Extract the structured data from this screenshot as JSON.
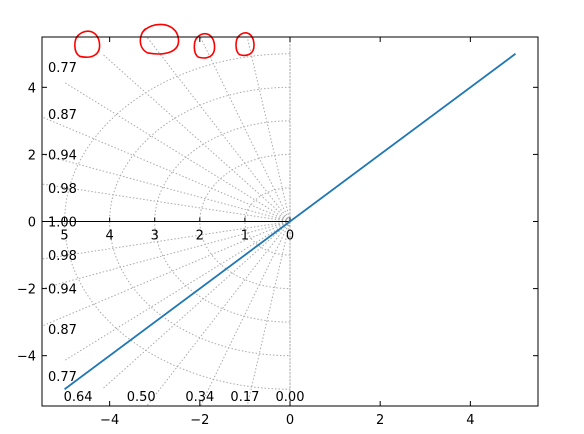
{
  "chart_data": {
    "type": "line",
    "title": "",
    "xlabel": "",
    "ylabel": "",
    "xlim": [
      -5.5,
      5.5
    ],
    "ylim": [
      -5.5,
      5.5
    ],
    "x_ticks": [
      -4,
      -2,
      0,
      2,
      4
    ],
    "y_ticks": [
      -4,
      -2,
      0,
      2,
      4
    ],
    "x_tick_labels": [
      "−4",
      "−2",
      "0",
      "2",
      "4"
    ],
    "y_tick_labels": [
      "−4",
      "−2",
      "0",
      "2",
      "4"
    ],
    "grid": false,
    "series": [
      {
        "color": "#1f77b4",
        "x": [
          -5,
          5
        ],
        "y": [
          -5,
          5
        ]
      }
    ],
    "smith_grid": {
      "color": "#aaaaaa",
      "radii": [
        1,
        2,
        3,
        4,
        5
      ],
      "radial_ratios": [
        0,
        0.17,
        0.34,
        0.5,
        0.64,
        0.77,
        0.87,
        0.94,
        0.98,
        1.0
      ]
    },
    "inner_axis": {
      "x_tick_values": [
        5,
        4,
        3,
        2,
        1,
        0
      ],
      "x_tick_labels": [
        "5",
        "4",
        "3",
        "2",
        "1",
        "0"
      ],
      "left_labels_upper": [
        {
          "y": 4.6,
          "text": "0.77"
        },
        {
          "y": 3.2,
          "text": "0.87"
        },
        {
          "y": 2.0,
          "text": "0.94"
        },
        {
          "y": 1.0,
          "text": "0.98"
        },
        {
          "y": 0.0,
          "text": "1.00"
        }
      ],
      "left_labels_lower": [
        {
          "y": -1.0,
          "text": "0.98"
        },
        {
          "y": -2.0,
          "text": "0.94"
        },
        {
          "y": -3.2,
          "text": "0.87"
        },
        {
          "y": -4.6,
          "text": "0.77"
        }
      ],
      "bottom_labels": [
        {
          "x": -4.7,
          "text": "0.64"
        },
        {
          "x": -3.3,
          "text": "0.50"
        },
        {
          "x": -2.0,
          "text": "0.34"
        },
        {
          "x": -1.0,
          "text": "0.17"
        },
        {
          "x": 0.0,
          "text": "0.00"
        }
      ]
    },
    "annotation_color": "#ff0000",
    "annotation_loops": [
      {
        "x": -4.5,
        "y": 5.3,
        "w": 0.55,
        "h": 0.75
      },
      {
        "x": -2.9,
        "y": 5.45,
        "w": 0.85,
        "h": 0.85
      },
      {
        "x": -1.9,
        "y": 5.25,
        "w": 0.45,
        "h": 0.7
      },
      {
        "x": -1.0,
        "y": 5.3,
        "w": 0.4,
        "h": 0.65
      }
    ]
  }
}
